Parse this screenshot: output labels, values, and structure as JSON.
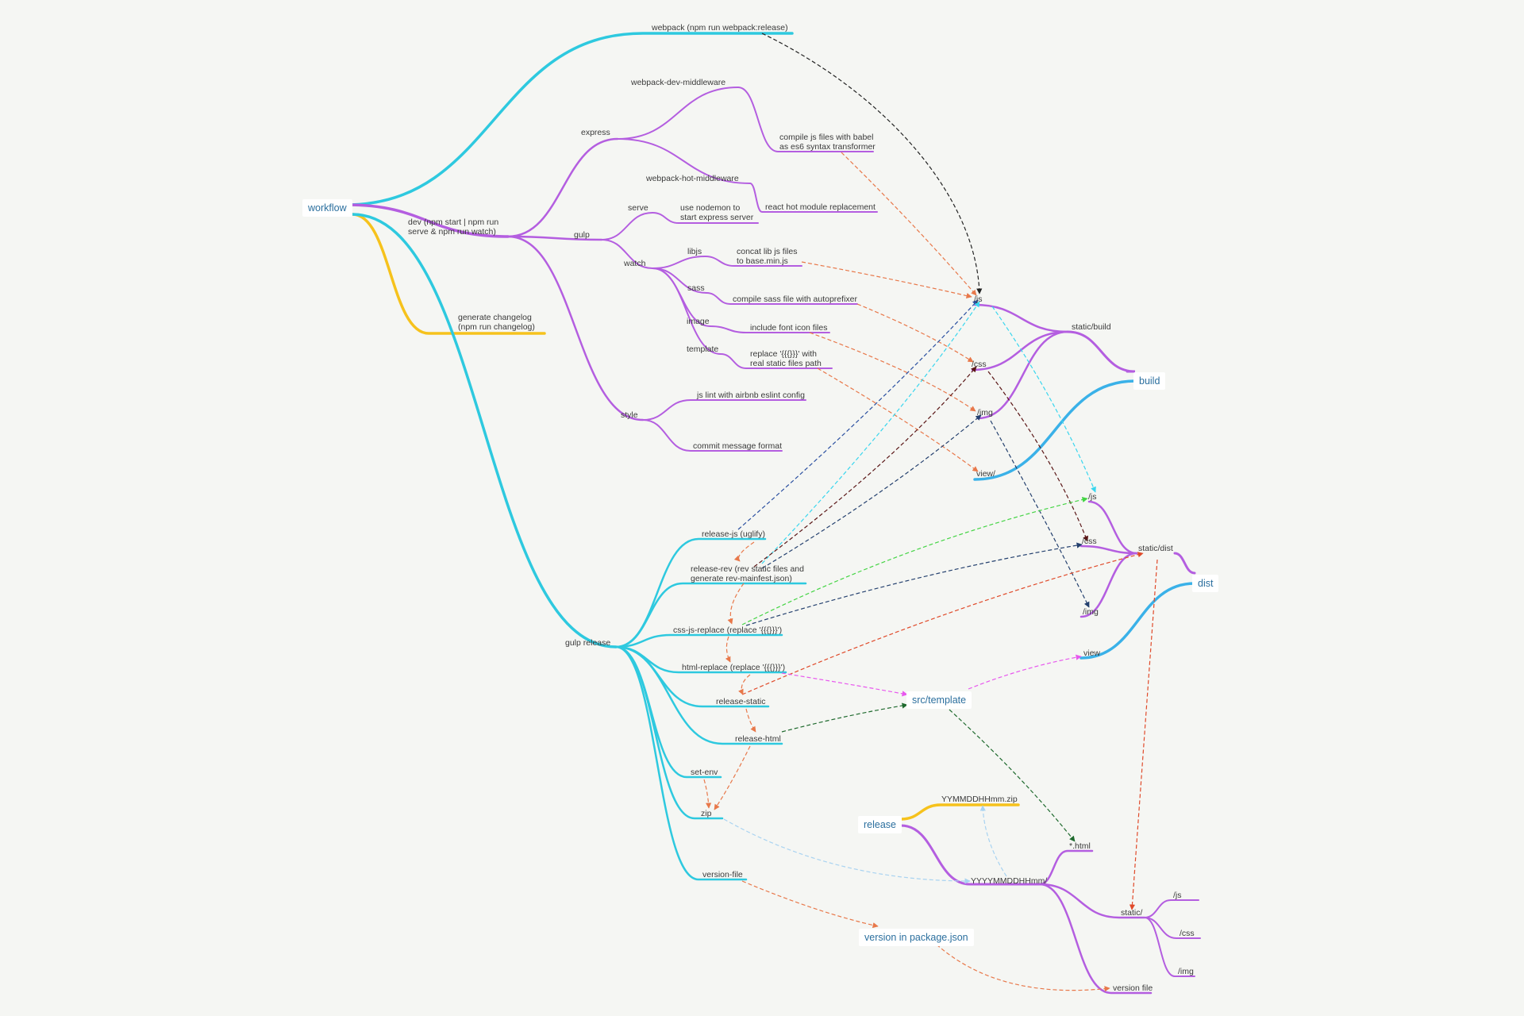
{
  "nodes": {
    "workflow": "workflow",
    "build": "build",
    "dist": "dist",
    "release": "release",
    "src_template": "src/template",
    "version_pkg": "version in package.json"
  },
  "labels": {
    "webpack": "webpack (npm run webpack:release)",
    "dev": "dev (npm start | npm run\nserve & npm run watch)",
    "changelog": "generate changelog\n(npm run changelog)",
    "express": "express",
    "wdm": "webpack-dev-middleware",
    "babel": "compile js files with babel\nas es6 syntax transformer",
    "whm": "webpack-hot-middleware",
    "react_hmr": "react hot module replacement",
    "gulp": "gulp",
    "serve": "serve",
    "nodemon": "use nodemon to\nstart express server",
    "watch": "watch",
    "libjs": "libjs",
    "concat": "concat lib js files\nto base.min.js",
    "sass": "sass",
    "compile_sass": "compile sass file with autoprefixer",
    "image": "image",
    "font_icon": "include font icon files",
    "template": "template",
    "replace": "replace '{{{}}}' with\nreal static files path",
    "style": "style",
    "eslint": "js lint with airbnb eslint config",
    "commit_fmt": "commit message format",
    "gulp_release": "gulp release",
    "release_js": "release-js (uglify)",
    "release_rev": "release-rev (rev static files and\ngenerate rev-mainfest.json)",
    "css_js_replace": "css-js-replace (replace '{{{}}}')",
    "html_replace": "html-replace (replace '{{{}}}')",
    "release_static": "release-static",
    "release_html": "release-html",
    "set_env": "set-env",
    "zip": "zip",
    "version_file": "version-file",
    "b_js": "/js",
    "b_css": "/css",
    "b_img": "/img",
    "b_view": "view/",
    "static_build": "static/build",
    "d_js": "/js",
    "d_css": "/css",
    "d_img": "/img",
    "static_dist": "static/dist",
    "d_view": "view",
    "zipfile": "YYMMDDHHmm.zip",
    "html_files": "*.html",
    "release_dir": "YYYYMMDDHHmm/",
    "r_static": "static/",
    "r_js": "/js",
    "r_css": "/css",
    "r_img": "/img",
    "r_version": "version file"
  },
  "colors": {
    "purple": "#b45ee0",
    "cyan": "#2ec9df",
    "yellow": "#f6c21c",
    "blue": "#3ab1e8",
    "orange": "#e8784a",
    "black": "#222222",
    "darkblue": "#2a4fa0",
    "lightcyan": "#38d6ee",
    "darkred": "#5a1616",
    "navy": "#24406e",
    "green": "#44d444",
    "magenta": "#e858ee",
    "darkgreen": "#1f6a2e",
    "lightblue": "#a9d3f1",
    "red": "#e04a2a"
  }
}
